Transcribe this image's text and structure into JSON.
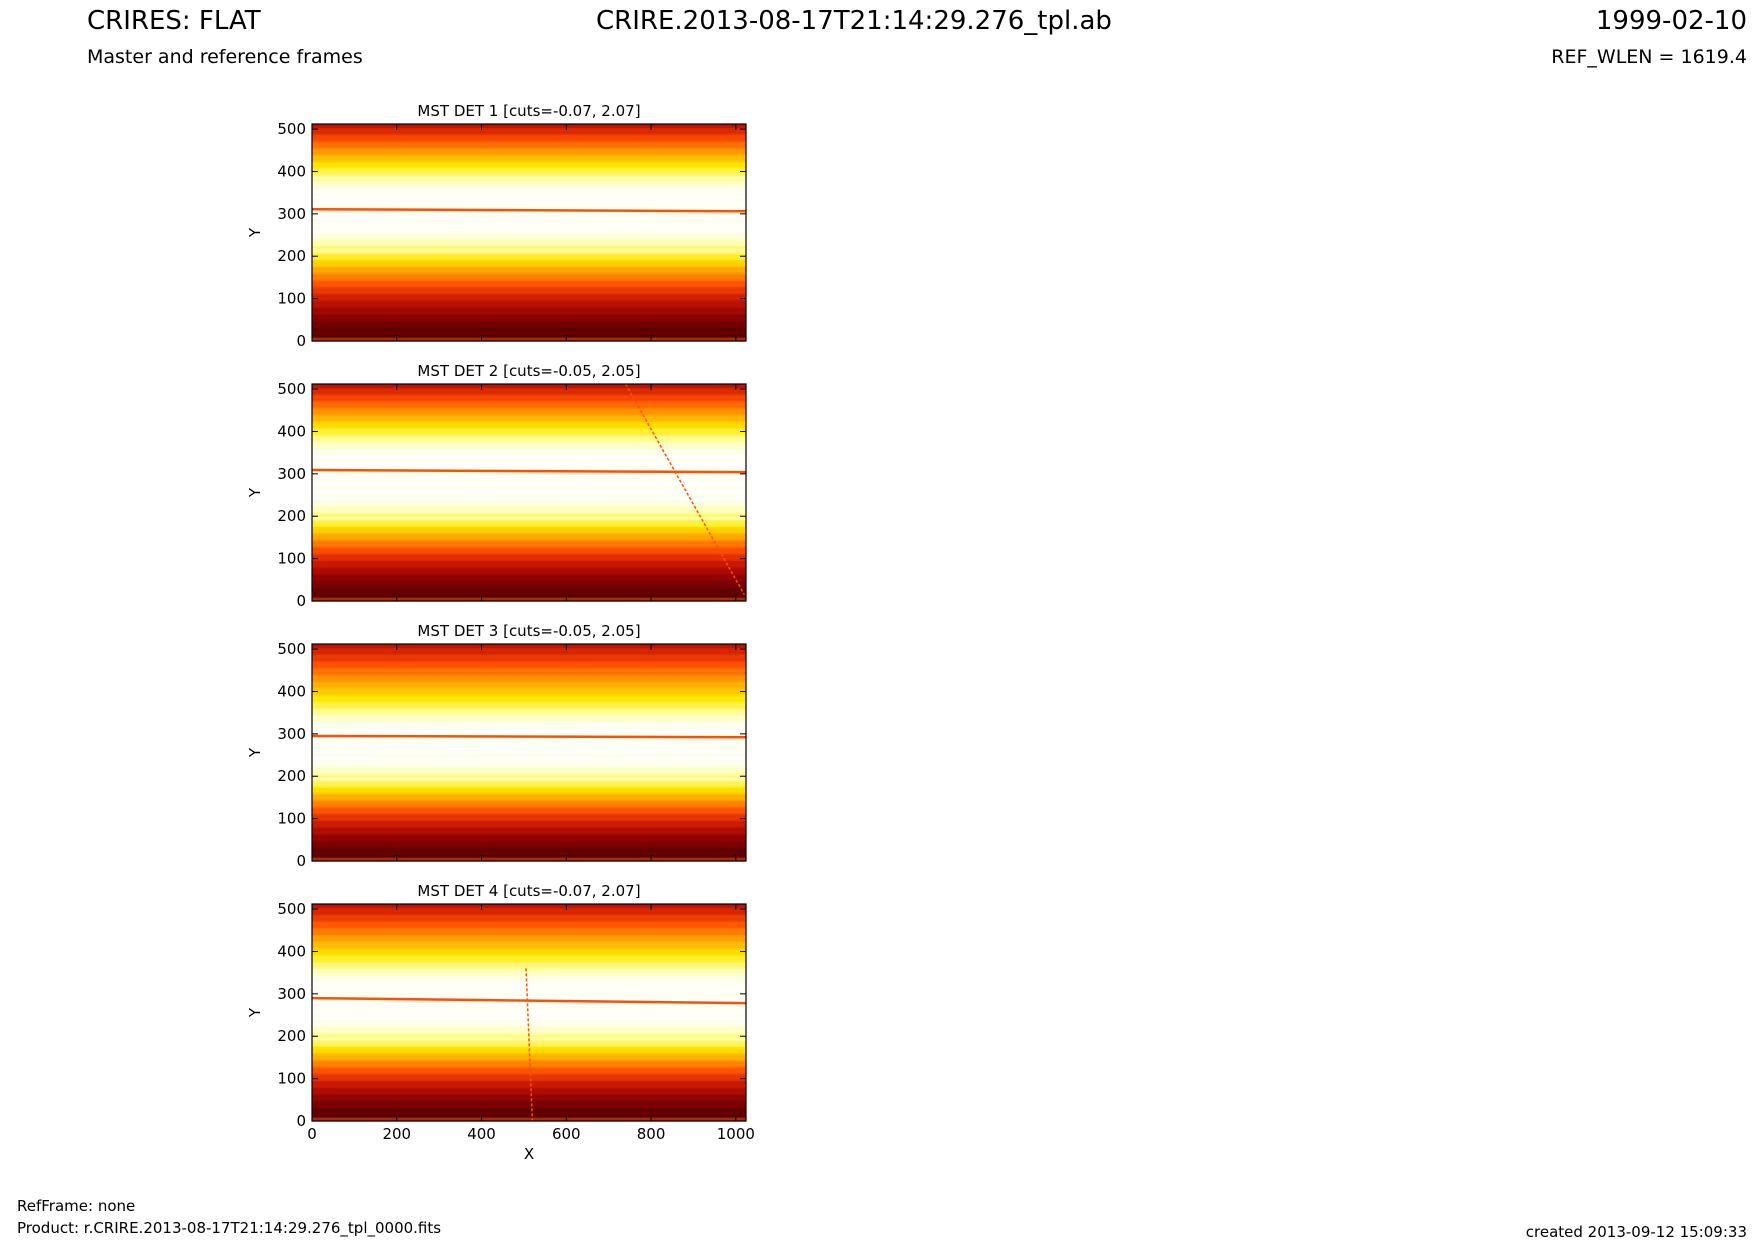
{
  "header": {
    "left_title": "CRIRES: FLAT",
    "center_title": "CRIRE.2013-08-17T21:14:29.276_tpl.ab",
    "right_title": "1999-02-10",
    "left_subtitle": "Master and reference frames",
    "right_subtitle": "REF_WLEN = 1619.4"
  },
  "footer": {
    "ref_frame": "RefFrame: none",
    "product": "Product: r.CRIRE.2013-08-17T21:14:29.276_tpl_0000.fits",
    "created": "created 2013-09-12 15:09:33"
  },
  "colors": {
    "colormap": [
      "#3d0000",
      "#8a0000",
      "#cc1a00",
      "#ff5200",
      "#ffa200",
      "#ffe800",
      "#ffffb0",
      "#ffffff"
    ],
    "line": "#ff4f00"
  },
  "chart_data": [
    {
      "type": "heatmap",
      "title": "MST DET 1 [cuts=-0.07, 2.07]",
      "xlabel": "",
      "ylabel": "Y",
      "xlim": [
        0,
        1024
      ],
      "ylim": [
        0,
        512
      ],
      "x_ticks": [],
      "y_ticks": [
        0,
        100,
        200,
        300,
        400,
        500
      ],
      "cuts": [
        -0.07,
        2.07
      ],
      "bright_band": [
        220,
        395
      ],
      "horizontal_line": [
        [
          0,
          311
        ],
        [
          1024,
          306
        ]
      ],
      "diagonal_line": null
    },
    {
      "type": "heatmap",
      "title": "MST DET 2 [cuts=-0.05, 2.05]",
      "xlabel": "",
      "ylabel": "Y",
      "xlim": [
        0,
        1024
      ],
      "ylim": [
        0,
        512
      ],
      "x_ticks": [],
      "y_ticks": [
        0,
        100,
        200,
        300,
        400,
        500
      ],
      "cuts": [
        -0.05,
        2.05
      ],
      "bright_band": [
        200,
        390
      ],
      "horizontal_line": [
        [
          0,
          309
        ],
        [
          1024,
          304
        ]
      ],
      "diagonal_line": [
        [
          740,
          512
        ],
        [
          1020,
          15
        ]
      ]
    },
    {
      "type": "heatmap",
      "title": "MST DET 3 [cuts=-0.05, 2.05]",
      "xlabel": "",
      "ylabel": "Y",
      "xlim": [
        0,
        1024
      ],
      "ylim": [
        0,
        512
      ],
      "x_ticks": [],
      "y_ticks": [
        0,
        100,
        200,
        300,
        400,
        500
      ],
      "cuts": [
        -0.05,
        2.05
      ],
      "bright_band": [
        195,
        360
      ],
      "horizontal_line": [
        [
          0,
          295
        ],
        [
          1024,
          292
        ]
      ],
      "diagonal_line": null
    },
    {
      "type": "heatmap",
      "title": "MST DET 4 [cuts=-0.07, 2.07]",
      "xlabel": "X",
      "ylabel": "Y",
      "xlim": [
        0,
        1024
      ],
      "ylim": [
        0,
        512
      ],
      "x_ticks": [
        0,
        200,
        400,
        600,
        800,
        1000
      ],
      "y_ticks": [
        0,
        100,
        200,
        300,
        400,
        500
      ],
      "cuts": [
        -0.07,
        2.07
      ],
      "bright_band": [
        195,
        370
      ],
      "horizontal_line": [
        [
          0,
          290
        ],
        [
          1024,
          278
        ]
      ],
      "diagonal_line": [
        [
          505,
          360
        ],
        [
          520,
          0
        ]
      ]
    }
  ]
}
